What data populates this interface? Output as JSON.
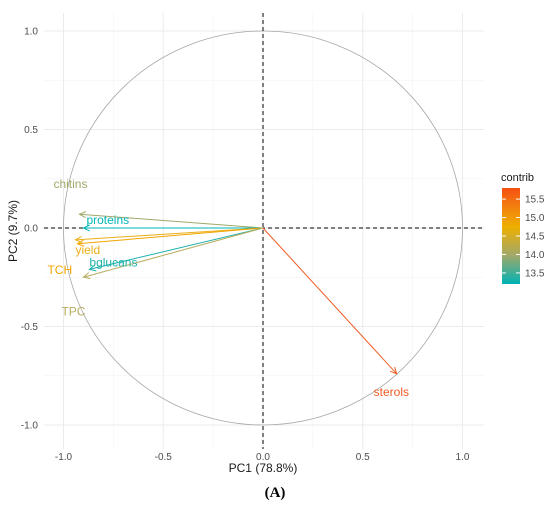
{
  "chart_data": {
    "type": "scatter",
    "title": "",
    "xlabel": "PC1 (78.8%)",
    "ylabel": "PC2 (9.7%)",
    "xlim": [
      -1.0,
      1.0
    ],
    "ylim": [
      -1.0,
      1.0
    ],
    "xticks": [
      "-1.0",
      "-0.5",
      "0.0",
      "0.5",
      "1.0"
    ],
    "yticks": [
      "-1.0",
      "-0.5",
      "0.0",
      "0.5",
      "1.0"
    ],
    "grid": true,
    "correlation_circle": true,
    "origin_lines": "dashed",
    "variables": [
      {
        "name": "chitins",
        "x": -0.92,
        "y": 0.07,
        "contrib": 14.2,
        "color": "#a0a86a"
      },
      {
        "name": "proteins",
        "x": -0.9,
        "y": 0.0,
        "contrib": 13.3,
        "color": "#00b5b8"
      },
      {
        "name": "yield",
        "x": -0.94,
        "y": -0.06,
        "contrib": 14.9,
        "color": "#eaae19"
      },
      {
        "name": "TCH",
        "x": -0.93,
        "y": -0.08,
        "contrib": 15.0,
        "color": "#f2a500"
      },
      {
        "name": "bglucans",
        "x": -0.87,
        "y": -0.21,
        "contrib": 13.4,
        "color": "#1fb1ac"
      },
      {
        "name": "TPC",
        "x": -0.9,
        "y": -0.25,
        "contrib": 14.1,
        "color": "#b7ad5f"
      },
      {
        "name": "sterols",
        "x": 0.67,
        "y": -0.74,
        "contrib": 15.8,
        "color": "#f05b22"
      }
    ],
    "legend": {
      "title": "contrib",
      "position": "right",
      "range": [
        13.2,
        15.8
      ],
      "ticks": [
        "13.5",
        "14.0",
        "14.5",
        "15.0",
        "15.5"
      ],
      "colors": [
        "#00b2b5",
        "#a2a86a",
        "#eeaf00",
        "#f37c10",
        "#f4500f"
      ]
    }
  },
  "caption": "(A)"
}
